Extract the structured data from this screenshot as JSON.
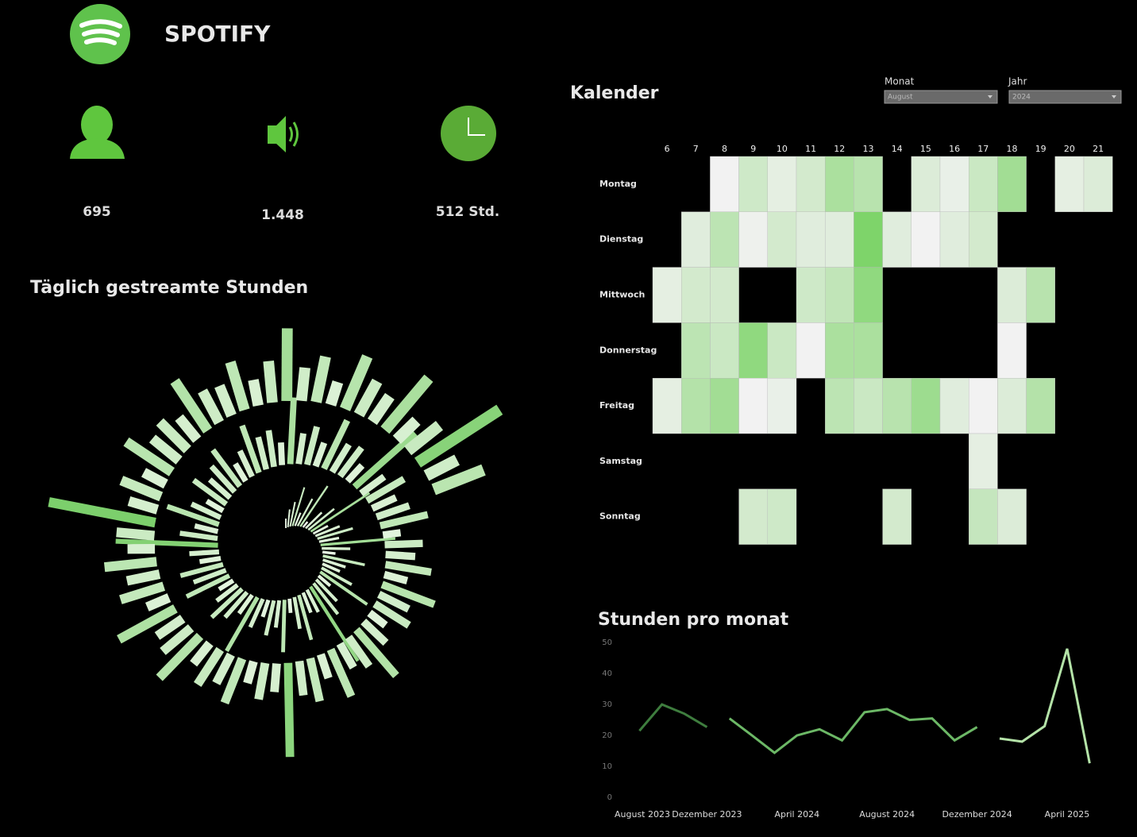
{
  "header": {
    "title": "SPOTIFY"
  },
  "kpis": [
    {
      "value": "695"
    },
    {
      "value": "1.448"
    },
    {
      "value": "512 Std."
    }
  ],
  "filters": [
    {
      "label": "Monat",
      "value": "August"
    },
    {
      "label": "Jahr",
      "value": "2024"
    }
  ],
  "chart_data": [
    {
      "type": "radial-bar",
      "title": "Täglich gestreamte Stunden",
      "color_range": [
        "#eef8ea",
        "#7ccf6c"
      ],
      "values": [
        0.8,
        1.5,
        2.1,
        3.4,
        1.2,
        2.6,
        4.1,
        0.6,
        1.9,
        2.8,
        5.9,
        1.4,
        2.2,
        3.1,
        1.7,
        6.3,
        2.4,
        1.1,
        3.6,
        2.0,
        1.6,
        2.9,
        4.8,
        1.3,
        2.5,
        3.3,
        7.4,
        2.1,
        1.8,
        3.9,
        2.7,
        1.2,
        4.4,
        2.3,
        3.0,
        1.5,
        2.6,
        5.2,
        1.9,
        2.8,
        3.5,
        2.2,
        1.4,
        4.0,
        2.9,
        3.7,
        1.8,
        2.5,
        8.6,
        3.2,
        2.0,
        4.6,
        2.7,
        1.6,
        3.4,
        2.3,
        2.9,
        3.8,
        1.7,
        2.4,
        4.2,
        2.8,
        3.1,
        1.9,
        5.6,
        2.6,
        3.3,
        2.1,
        4.5,
        2.7,
        3.0,
        1.8,
        6.8,
        2.4,
        3.6,
        2.2,
        2.9,
        4.1,
        1.5,
        3.2,
        2.5,
        3.9,
        2.0,
        4.7,
        2.8,
        3.4,
        1.7,
        2.6,
        5.1,
        3.0,
        2.3,
        4.3,
        2.1,
        3.7,
        2.9,
        7.9,
        2.4,
        3.1,
        1.9,
        4.0,
        2.7,
        3.5,
        2.2,
        4.9,
        3.1,
        2.6,
        5.4,
        2.0,
        3.8,
        2.8,
        4.4,
        2.3,
        3.2,
        9.1,
        2.5,
        3.6,
        2.1,
        4.6,
        2.9,
        3.3,
        2.4,
        5.0,
        3.0,
        2.7,
        4.2,
        2.2,
        3.5,
        6.1,
        2.8,
        3.9,
        2.0,
        4.8,
        3.2,
        2.6,
        5.7,
        2.3,
        3.4,
        8.2,
        2.9,
        4.5
      ]
    },
    {
      "type": "heatmap",
      "title": "Kalender",
      "color_range": [
        "#f2f2f2",
        "#7ed46a"
      ],
      "categories": [
        6,
        7,
        8,
        9,
        10,
        11,
        12,
        13,
        14,
        15,
        16,
        17,
        18,
        19,
        20,
        21
      ],
      "rows": [
        "Montag",
        "Dienstag",
        "Mittwoch",
        "Donnerstag",
        "Freitag",
        "Samstag",
        "Sonntag"
      ],
      "values": [
        [
          null,
          null,
          0.2,
          1.0,
          0.5,
          0.9,
          1.8,
          1.5,
          null,
          0.7,
          0.4,
          1.1,
          2.0,
          null,
          0.5,
          0.7
        ],
        [
          null,
          0.6,
          1.4,
          0.3,
          0.9,
          0.6,
          0.6,
          2.8,
          0.6,
          0.2,
          0.6,
          0.9,
          null,
          null,
          null,
          null
        ],
        [
          0.5,
          0.9,
          0.9,
          null,
          null,
          1.0,
          1.3,
          2.4,
          null,
          null,
          null,
          null,
          0.7,
          1.5,
          null,
          null
        ],
        [
          null,
          1.4,
          1.1,
          2.4,
          1.1,
          0.2,
          1.8,
          1.8,
          null,
          null,
          null,
          null,
          0.2,
          null,
          null,
          null
        ],
        [
          0.5,
          1.6,
          2.0,
          0.2,
          0.4,
          null,
          1.4,
          1.1,
          1.5,
          2.1,
          0.6,
          0.2,
          0.7,
          1.6,
          null,
          null
        ],
        [
          null,
          null,
          null,
          null,
          null,
          null,
          null,
          null,
          null,
          null,
          null,
          0.5,
          null,
          null,
          null,
          null
        ],
        [
          null,
          null,
          null,
          0.9,
          1.0,
          null,
          null,
          null,
          0.9,
          null,
          null,
          1.2,
          0.7,
          null,
          null,
          null
        ]
      ]
    },
    {
      "type": "line",
      "title": "Stunden pro monat",
      "categories": [
        "August 2023",
        null,
        null,
        null,
        "Dezember 2023",
        null,
        null,
        null,
        "April 2024",
        null,
        null,
        null,
        "August 2024",
        null,
        null,
        null,
        "Dezember 2024",
        null,
        null,
        null,
        "April 2025",
        null
      ],
      "ylim": [
        0,
        50
      ],
      "yticks": [
        0,
        10,
        20,
        30,
        40,
        50
      ],
      "series": [
        {
          "color": "#3e7d3e",
          "values": [
            null,
            22.5,
            31,
            28,
            23.7,
            null,
            null,
            null,
            null,
            null,
            null,
            null,
            null,
            null,
            null,
            null,
            null,
            null,
            null,
            null,
            null,
            null
          ]
        },
        {
          "color": "#6cb866",
          "values": [
            null,
            null,
            null,
            null,
            null,
            26.5,
            21,
            15.4,
            21,
            23,
            19.4,
            28.5,
            29.5,
            26,
            26.5,
            19.4,
            23.7,
            null,
            null,
            null,
            null,
            null
          ]
        },
        {
          "color": "#b4e3a8",
          "values": [
            null,
            null,
            null,
            null,
            null,
            null,
            null,
            null,
            null,
            null,
            null,
            null,
            null,
            null,
            null,
            null,
            null,
            20,
            19,
            24,
            49,
            12
          ]
        }
      ]
    }
  ]
}
